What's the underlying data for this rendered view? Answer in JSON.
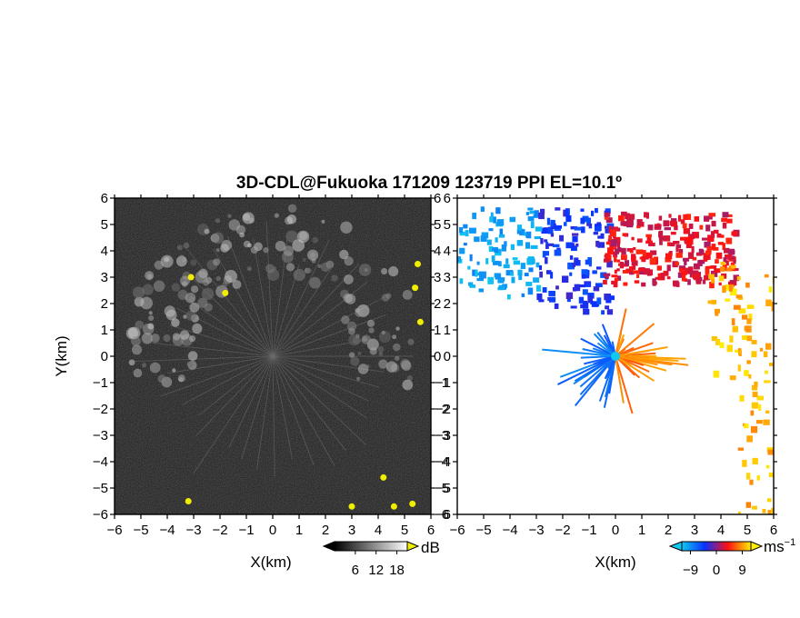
{
  "title": "3D-CDL@Fukuoka 171209 123719 PPI EL=10.1º",
  "chart_data": [
    {
      "type": "heatmap",
      "panel": "left",
      "quantity": "signal intensity",
      "xlabel": "X(km)",
      "ylabel": "Y(km)",
      "xlim": [
        -6,
        6
      ],
      "ylim": [
        -6,
        6
      ],
      "xticks": [
        "-6",
        "-5",
        "-4",
        "-3",
        "-2",
        "-1",
        "0",
        "1",
        "2",
        "3",
        "4",
        "5",
        "6"
      ],
      "yticks": [
        "-6",
        "-5",
        "-4",
        "-3",
        "-2",
        "-1",
        "0",
        "1",
        "2",
        "3",
        "4",
        "5",
        "6"
      ],
      "colorbar": {
        "unit": "dB",
        "ticks": [
          "6",
          "12",
          "18"
        ],
        "range": [
          0,
          21
        ],
        "colors": [
          "#000000",
          "#ffffff"
        ],
        "over_color": "#f0ee00"
      },
      "background": "#1c1c1c",
      "features": [
        {
          "name": "arc of stronger echo",
          "radius_km": [
            3,
            5.7
          ],
          "angle_deg": [
            -15,
            195
          ],
          "level_db": 15
        },
        {
          "name": "radial streaks from origin",
          "count": 40,
          "level_db": 9
        },
        {
          "name": "saturated spots",
          "color": "yellow",
          "points": [
            [
              5.5,
              3.5
            ],
            [
              5.4,
              2.6
            ],
            [
              5.6,
              1.3
            ],
            [
              4.2,
              -4.6
            ],
            [
              4.6,
              -5.7
            ],
            [
              3,
              -5.7
            ],
            [
              -3.2,
              -5.5
            ],
            [
              5.3,
              -5.6
            ],
            [
              -1.8,
              2.4
            ],
            [
              -3.1,
              3.0
            ]
          ]
        }
      ]
    },
    {
      "type": "heatmap",
      "panel": "right",
      "quantity": "radial velocity",
      "xlabel": "X(km)",
      "ylabel": "Y(km)",
      "xlim": [
        -6,
        6
      ],
      "ylim": [
        -6,
        6
      ],
      "xticks": [
        "-6",
        "-5",
        "-4",
        "-3",
        "-2",
        "-1",
        "0",
        "1",
        "2",
        "3",
        "4",
        "5",
        "6"
      ],
      "yticks": [
        "-6",
        "-5",
        "-4",
        "-3",
        "-2",
        "-1",
        "0",
        "1",
        "2",
        "3",
        "4",
        "5",
        "6"
      ],
      "colorbar": {
        "unit": "ms-1",
        "ticks": [
          "-9",
          "0",
          "9"
        ],
        "range": [
          -12,
          12
        ],
        "colors": [
          "#10c8f0",
          "#0a30ff",
          "#ff1010",
          "#ffee00"
        ]
      },
      "background": "#ffffff",
      "features": [
        {
          "name": "approaching (negative) echoes",
          "region": "north-west",
          "velocity_ms": -4
        },
        {
          "name": "receding (positive) echoes",
          "region": "north-east",
          "velocity_ms": 3
        },
        {
          "name": "strong receding echoes",
          "region": "east",
          "velocity_ms": 10
        },
        {
          "name": "radial fan near origin",
          "x_km": [
            -1.5,
            2.5
          ],
          "y_km": [
            -2.5,
            1.5
          ]
        }
      ]
    }
  ]
}
